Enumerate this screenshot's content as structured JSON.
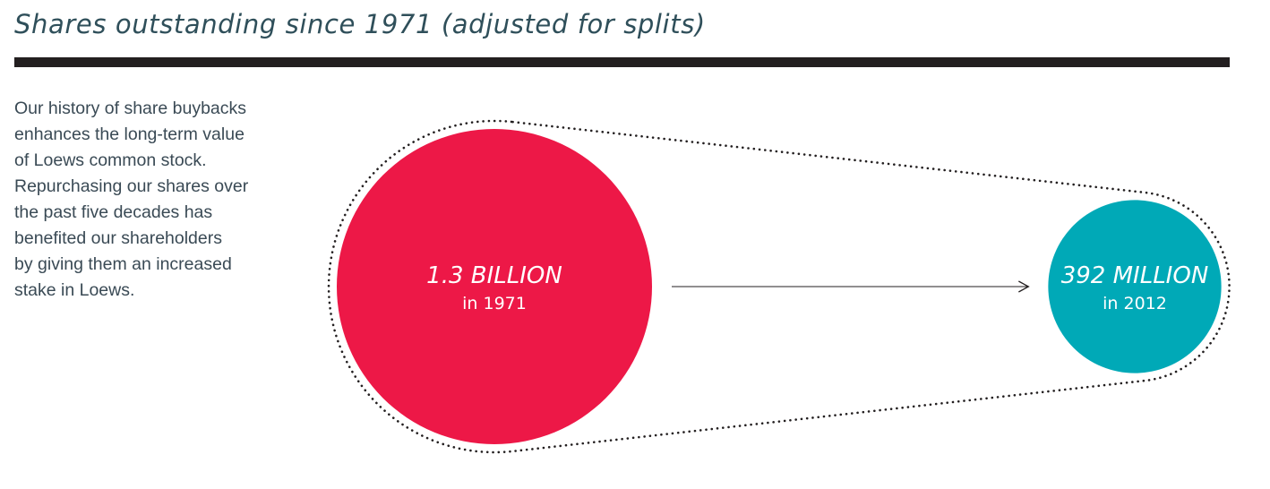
{
  "title": "Shares outstanding since 1971 (adjusted for splits)",
  "intro_lines": [
    "Our history of share buybacks",
    "enhances the long-term value",
    "of Loews common stock.",
    "Repurchasing our shares over",
    "the past five decades has",
    "benefited our shareholders",
    "by giving them an increased",
    "stake in Loews."
  ],
  "chart_data": {
    "type": "bubble-comparison",
    "unit": "shares",
    "points": [
      {
        "year": 1971,
        "value": 1300000000,
        "value_label": "1.3 BILLION",
        "year_label": "in 1971",
        "color": "#ed1847"
      },
      {
        "year": 2012,
        "value": 392000000,
        "value_label": "392 MILLION",
        "year_label": "in 2012",
        "color": "#00a9b7"
      }
    ],
    "arrow": "left-to-right",
    "outline_style": "dotted"
  }
}
